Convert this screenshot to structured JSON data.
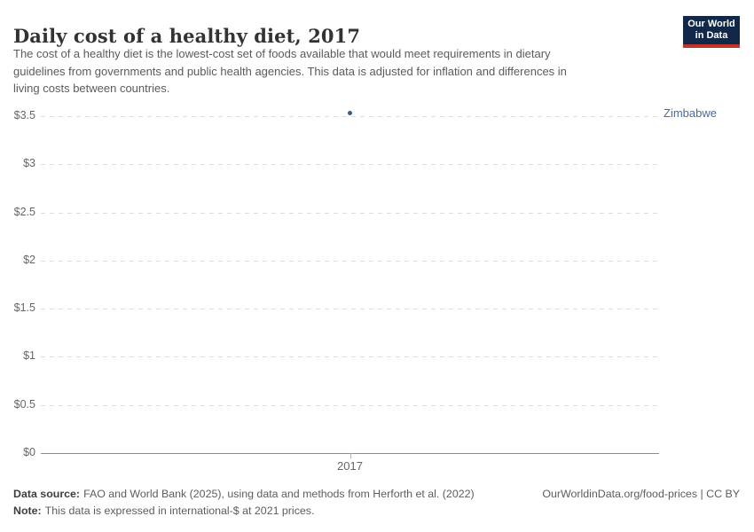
{
  "header": {
    "title": "Daily cost of a healthy diet, 2017",
    "subtitle_lines": [
      "The cost of a healthy diet is the lowest-cost set of foods available that would meet requirements in dietary",
      "guidelines from governments and public health agencies. This data is adjusted for inflation and differences in",
      "living costs between countries."
    ],
    "logo": {
      "line1": "Our World",
      "line2": "in Data"
    }
  },
  "chart_data": {
    "type": "scatter",
    "title": "Daily cost of a healthy diet, 2017",
    "x": [
      2017
    ],
    "x_tick_labels": [
      "2017"
    ],
    "series": [
      {
        "name": "Zimbabwe",
        "values": [
          3.53
        ]
      }
    ],
    "y_ticks": [
      "$0",
      "$0.5",
      "$1",
      "$1.5",
      "$2",
      "$2.5",
      "$3",
      "$3.5"
    ],
    "y_tick_values": [
      0,
      0.5,
      1,
      1.5,
      2,
      2.5,
      3,
      3.5
    ],
    "ylim": [
      0,
      3.5
    ],
    "xlabel": "",
    "ylabel": "",
    "grid": "horizontal-dashed",
    "legend_position": "right-inline-label",
    "unit": "international-$ at 2021 prices"
  },
  "footer": {
    "source_label": "Data source:",
    "source_text": "FAO and World Bank (2025), using data and methods from Herforth et al. (2022)",
    "note_label": "Note:",
    "note_text": "This data is expressed in international-$ at 2021 prices.",
    "link": "OurWorldinData.org/food-prices | CC BY"
  },
  "colors": {
    "point": "#3b5a92",
    "entity_label": "#4c6a9c",
    "logo_bg": "#12284a",
    "logo_red": "#c0342a",
    "gridline": "#dcdcdc",
    "axis": "#8c8c8c",
    "text_gray": "#5b5b5b"
  }
}
